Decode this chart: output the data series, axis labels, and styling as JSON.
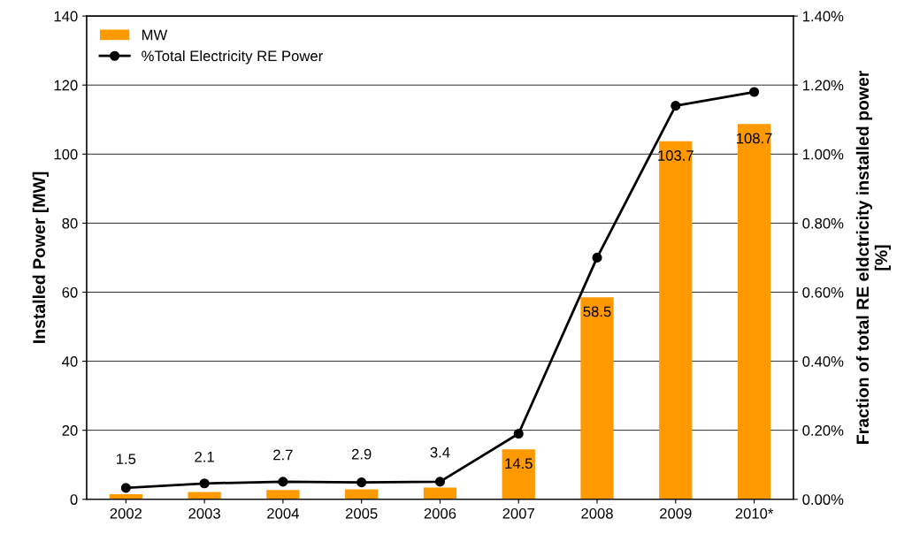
{
  "chart_data": {
    "type": "bar",
    "ylabel": "Installed Power [MW]",
    "y2label": "Fraction of total RE eldctricity installed power\n[%]",
    "categories": [
      "2002",
      "2003",
      "2004",
      "2005",
      "2006",
      "2007",
      "2008",
      "2009",
      "2010*"
    ],
    "series": [
      {
        "name": "MW",
        "type": "bar",
        "color": "#ff9900",
        "values": [
          1.5,
          2.1,
          2.7,
          2.9,
          3.4,
          14.5,
          58.5,
          103.7,
          108.7
        ],
        "data_labels": true
      },
      {
        "name": "%Total Electricity RE Power",
        "type": "line",
        "axis": "y2",
        "color": "#000000",
        "marker": "circle",
        "line_style": "solid",
        "values": [
          0.033,
          0.046,
          0.051,
          0.049,
          0.051,
          0.19,
          0.7,
          1.14,
          1.18
        ]
      }
    ],
    "ylim": [
      0,
      140
    ],
    "yticks": [
      0,
      20,
      40,
      60,
      80,
      100,
      120,
      140
    ],
    "y2lim": [
      0,
      1.4
    ],
    "y2ticks": [
      {
        "value": 0,
        "label": "0.00%"
      },
      {
        "value": 0.2,
        "label": "0.20%"
      },
      {
        "value": 0.4,
        "label": "0.40%"
      },
      {
        "value": 0.6,
        "label": "0.60%"
      },
      {
        "value": 0.8,
        "label": "0.80%"
      },
      {
        "value": 1.0,
        "label": "1.00%"
      },
      {
        "value": 1.2,
        "label": "1.20%"
      },
      {
        "value": 1.4,
        "label": "1.40%"
      }
    ],
    "grid": "y",
    "legend": "top left"
  }
}
